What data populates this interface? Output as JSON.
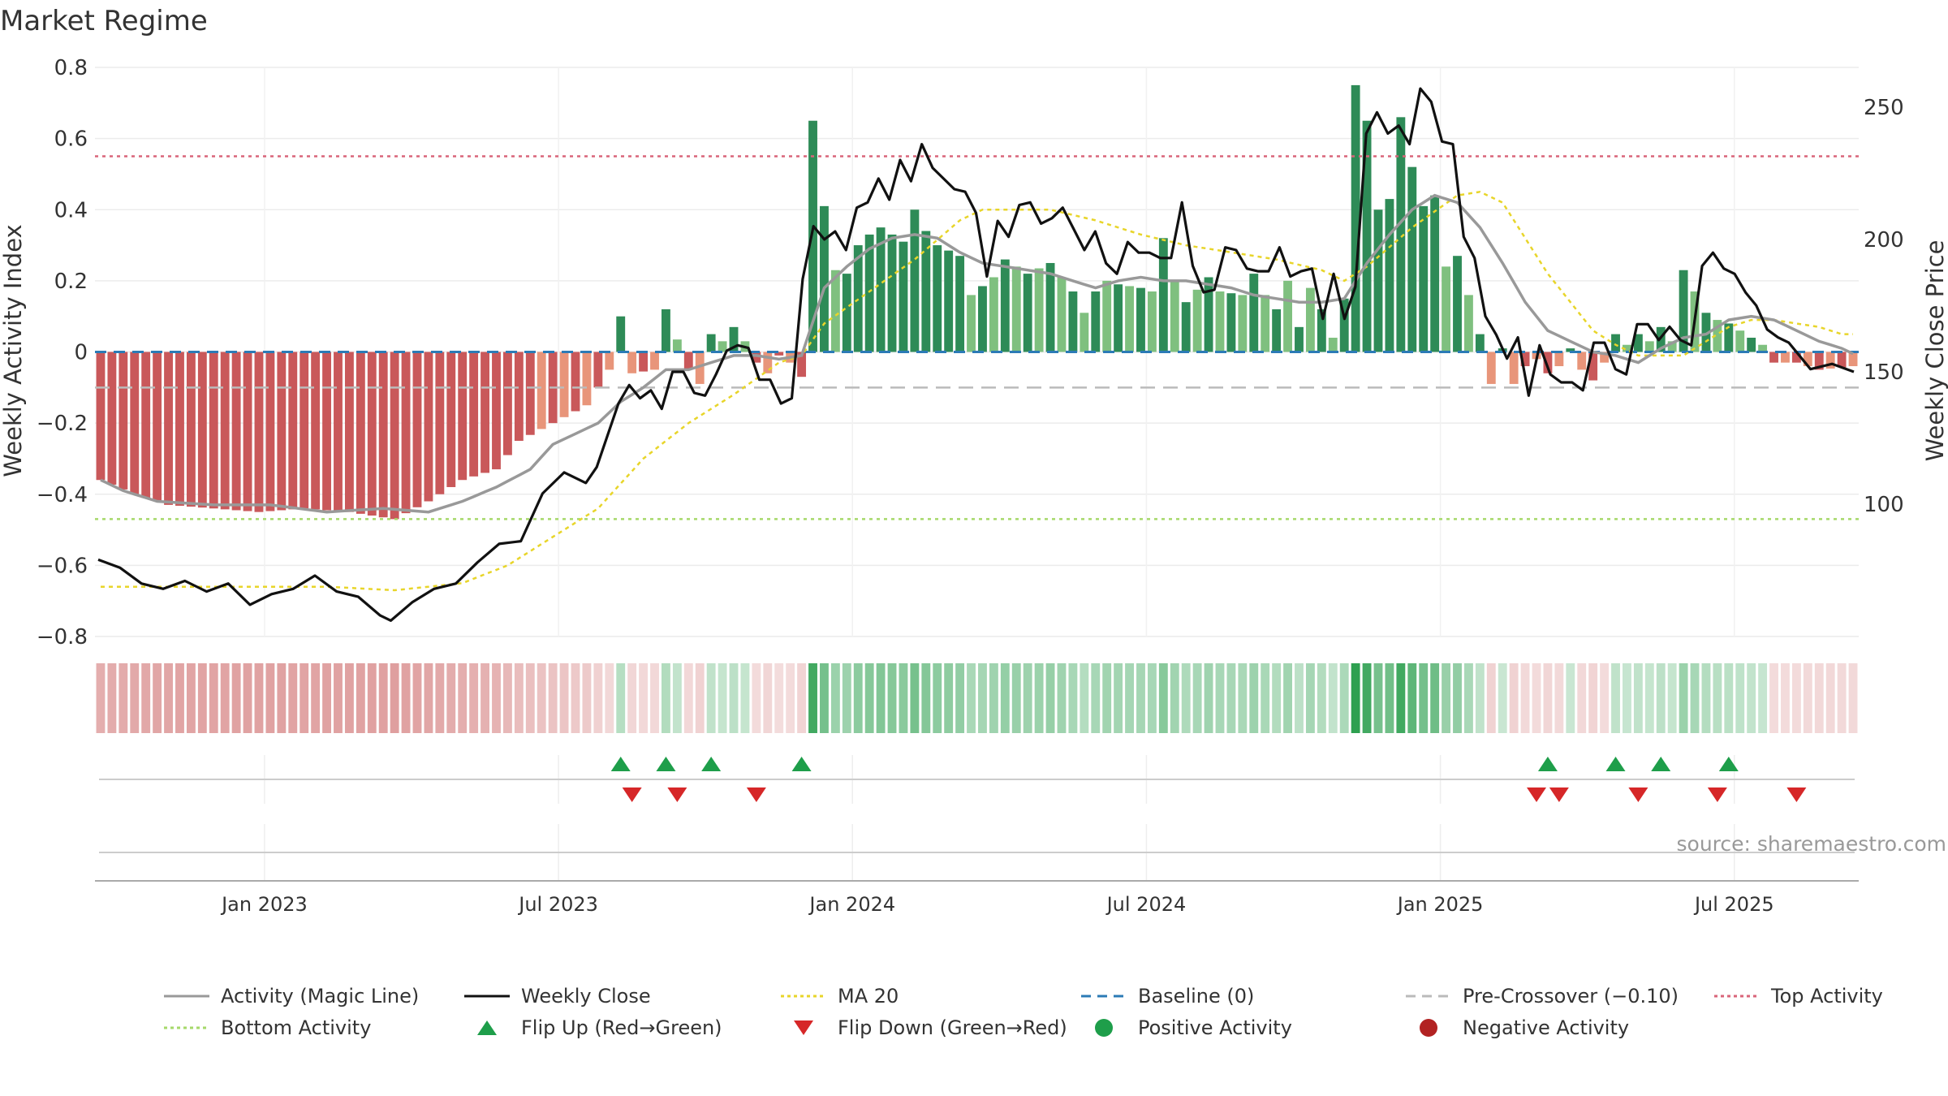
{
  "title": "Market Regime",
  "source_label": "source: sharemaestro.com",
  "colors": {
    "bar_neg_strong": "#c9585a",
    "bar_neg_weak": "#e8957a",
    "bar_pos_strong": "#2e8b57",
    "bar_pos_weak": "#7fc07f",
    "magic_line": "#999999",
    "close": "#111111",
    "ma20": "#e8d52a",
    "baseline": "#2c7bb6",
    "pre_crossover": "#bbbbbb",
    "top_activity": "#d9657a",
    "bottom_activity": "#a6d96a",
    "flip_up": "#1e9e4a",
    "flip_down": "#d62728"
  },
  "legend": [
    {
      "label": "Activity (Magic Line)",
      "kind": "line",
      "color": "#999999",
      "dash": ""
    },
    {
      "label": "Weekly Close",
      "kind": "line",
      "color": "#111111",
      "dash": ""
    },
    {
      "label": "MA 20",
      "kind": "line",
      "color": "#e8d52a",
      "dash": "4,4"
    },
    {
      "label": "Baseline (0)",
      "kind": "line",
      "color": "#2c7bb6",
      "dash": "12,8"
    },
    {
      "label": "Pre-Crossover (−0.10)",
      "kind": "line",
      "color": "#bbbbbb",
      "dash": "12,8"
    },
    {
      "label": "Top Activity",
      "kind": "line",
      "color": "#d9657a",
      "dash": "4,4"
    },
    {
      "label": "Bottom Activity",
      "kind": "line",
      "color": "#a6d96a",
      "dash": "4,4"
    },
    {
      "label": "Flip Up (Red→Green)",
      "kind": "tri-up",
      "color": "#1e9e4a",
      "dash": ""
    },
    {
      "label": "Flip Down (Green→Red)",
      "kind": "tri-down",
      "color": "#d62728",
      "dash": ""
    },
    {
      "label": "Positive Activity",
      "kind": "dot",
      "color": "#1e9e4a",
      "dash": ""
    },
    {
      "label": "Negative Activity",
      "kind": "dot",
      "color": "#b22222",
      "dash": ""
    }
  ],
  "chart_data": {
    "type": "bar",
    "ylabel_left": "Weekly Activity Index",
    "ylabel_right": "Weekly Close Price",
    "ylim_left": [
      -0.8,
      0.8
    ],
    "ylim_right": [
      50,
      265
    ],
    "yticks_left": [
      {
        "value": 0.8,
        "label": "0.8"
      },
      {
        "value": 0.6,
        "label": "0.6"
      },
      {
        "value": 0.4,
        "label": "0.4"
      },
      {
        "value": 0.2,
        "label": "0.2"
      },
      {
        "value": 0,
        "label": "0"
      },
      {
        "value": -0.2,
        "label": "−0.2"
      },
      {
        "value": -0.4,
        "label": "−0.4"
      },
      {
        "value": -0.6,
        "label": "−0.6"
      },
      {
        "value": -0.8,
        "label": "−0.8"
      }
    ],
    "yticks_right": [
      {
        "value": 250,
        "label": "250"
      },
      {
        "value": 200,
        "label": "200"
      },
      {
        "value": 150,
        "label": "150"
      },
      {
        "value": 100,
        "label": "100"
      }
    ],
    "x_start_week_label_index": 0,
    "xticks": [
      {
        "week": 15,
        "label": "Jan 2023"
      },
      {
        "week": 41,
        "label": "Jul 2023"
      },
      {
        "week": 67,
        "label": "Jan 2024"
      },
      {
        "week": 93,
        "label": "Jul 2024"
      },
      {
        "week": 119,
        "label": "Jan 2025"
      },
      {
        "week": 145,
        "label": "Jul 2025"
      }
    ],
    "weeks": 156,
    "reference_lines": {
      "baseline": 0,
      "pre_crossover": -0.1,
      "top_activity": 0.55,
      "bottom_activity": -0.47
    },
    "activity_anchors": [
      [
        0,
        -0.36
      ],
      [
        3,
        -0.4
      ],
      [
        6,
        -0.43
      ],
      [
        10,
        -0.44
      ],
      [
        14,
        -0.45
      ],
      [
        18,
        -0.44
      ],
      [
        22,
        -0.45
      ],
      [
        26,
        -0.47
      ],
      [
        29,
        -0.42
      ],
      [
        32,
        -0.36
      ],
      [
        35,
        -0.33
      ],
      [
        37,
        -0.25
      ],
      [
        40,
        -0.2
      ],
      [
        43,
        -0.15
      ],
      [
        45,
        -0.05
      ],
      [
        46,
        0.1
      ],
      [
        47,
        -0.06
      ],
      [
        49,
        -0.05
      ],
      [
        50,
        0.12
      ],
      [
        52,
        -0.05
      ],
      [
        53,
        -0.09
      ],
      [
        54,
        0.05
      ],
      [
        55,
        0.03
      ],
      [
        56,
        0.07
      ],
      [
        57,
        0.03
      ],
      [
        58,
        -0.03
      ],
      [
        59,
        -0.06
      ],
      [
        60,
        -0.01
      ],
      [
        61,
        -0.03
      ],
      [
        62,
        -0.07
      ],
      [
        63,
        0.65
      ],
      [
        64,
        0.41
      ],
      [
        65,
        0.23
      ],
      [
        66,
        0.22
      ],
      [
        67,
        0.3
      ],
      [
        68,
        0.33
      ],
      [
        69,
        0.35
      ],
      [
        71,
        0.31
      ],
      [
        72,
        0.4
      ],
      [
        73,
        0.34
      ],
      [
        74,
        0.3
      ],
      [
        76,
        0.27
      ],
      [
        77,
        0.16
      ],
      [
        79,
        0.21
      ],
      [
        80,
        0.26
      ],
      [
        82,
        0.22
      ],
      [
        84,
        0.25
      ],
      [
        86,
        0.17
      ],
      [
        87,
        0.11
      ],
      [
        88,
        0.17
      ],
      [
        89,
        0.2
      ],
      [
        90,
        0.19
      ],
      [
        92,
        0.18
      ],
      [
        93,
        0.17
      ],
      [
        94,
        0.32
      ],
      [
        95,
        0.2
      ],
      [
        96,
        0.14
      ],
      [
        98,
        0.21
      ],
      [
        99,
        0.17
      ],
      [
        101,
        0.16
      ],
      [
        102,
        0.22
      ],
      [
        103,
        0.16
      ],
      [
        104,
        0.12
      ],
      [
        105,
        0.2
      ],
      [
        106,
        0.07
      ],
      [
        107,
        0.18
      ],
      [
        108,
        0.12
      ],
      [
        109,
        0.04
      ],
      [
        110,
        0.15
      ],
      [
        111,
        0.75
      ],
      [
        112,
        0.65
      ],
      [
        113,
        0.4
      ],
      [
        114,
        0.43
      ],
      [
        115,
        0.66
      ],
      [
        116,
        0.52
      ],
      [
        117,
        0.41
      ],
      [
        118,
        0.44
      ],
      [
        119,
        0.24
      ],
      [
        120,
        0.27
      ],
      [
        121,
        0.16
      ],
      [
        122,
        0.05
      ],
      [
        123,
        -0.09
      ],
      [
        124,
        0.01
      ],
      [
        125,
        -0.09
      ],
      [
        126,
        -0.04
      ],
      [
        127,
        -0.02
      ],
      [
        128,
        -0.06
      ],
      [
        129,
        -0.04
      ],
      [
        130,
        0.01
      ],
      [
        131,
        -0.05
      ],
      [
        132,
        -0.08
      ],
      [
        133,
        -0.03
      ],
      [
        134,
        0.05
      ],
      [
        135,
        0.02
      ],
      [
        136,
        0.05
      ],
      [
        137,
        0.03
      ],
      [
        138,
        0.07
      ],
      [
        139,
        0.03
      ],
      [
        140,
        0.23
      ],
      [
        141,
        0.17
      ],
      [
        142,
        0.11
      ],
      [
        143,
        0.09
      ],
      [
        144,
        0.08
      ],
      [
        145,
        0.06
      ],
      [
        146,
        0.04
      ],
      [
        147,
        0.02
      ],
      [
        148,
        -0.03
      ],
      [
        150,
        -0.03
      ],
      [
        152,
        -0.05
      ],
      [
        155,
        -0.04
      ]
    ],
    "close_anchors": [
      [
        0,
        79
      ],
      [
        2,
        76
      ],
      [
        4,
        70
      ],
      [
        6,
        68
      ],
      [
        8,
        71
      ],
      [
        10,
        67
      ],
      [
        12,
        70
      ],
      [
        14,
        62
      ],
      [
        16,
        66
      ],
      [
        18,
        68
      ],
      [
        20,
        73
      ],
      [
        22,
        67
      ],
      [
        24,
        65
      ],
      [
        26,
        58
      ],
      [
        27,
        56
      ],
      [
        29,
        63
      ],
      [
        31,
        68
      ],
      [
        33,
        70
      ],
      [
        35,
        78
      ],
      [
        37,
        85
      ],
      [
        39,
        86
      ],
      [
        41,
        104
      ],
      [
        43,
        112
      ],
      [
        45,
        108
      ],
      [
        46,
        114
      ],
      [
        48,
        138
      ],
      [
        49,
        145
      ],
      [
        50,
        140
      ],
      [
        51,
        143
      ],
      [
        52,
        136
      ],
      [
        53,
        150
      ],
      [
        54,
        150
      ],
      [
        55,
        142
      ],
      [
        56,
        141
      ],
      [
        57,
        149
      ],
      [
        58,
        158
      ],
      [
        59,
        160
      ],
      [
        60,
        159
      ],
      [
        61,
        147
      ],
      [
        62,
        147
      ],
      [
        63,
        138
      ],
      [
        64,
        140
      ],
      [
        65,
        185
      ],
      [
        66,
        205
      ],
      [
        67,
        200
      ],
      [
        68,
        203
      ],
      [
        69,
        196
      ],
      [
        70,
        212
      ],
      [
        71,
        214
      ],
      [
        72,
        223
      ],
      [
        73,
        215
      ],
      [
        74,
        230
      ],
      [
        75,
        222
      ],
      [
        76,
        236
      ],
      [
        77,
        227
      ],
      [
        78,
        223
      ],
      [
        79,
        219
      ],
      [
        80,
        218
      ],
      [
        81,
        210
      ],
      [
        82,
        186
      ],
      [
        83,
        207
      ],
      [
        84,
        201
      ],
      [
        85,
        213
      ],
      [
        86,
        214
      ],
      [
        87,
        206
      ],
      [
        88,
        208
      ],
      [
        89,
        212
      ],
      [
        90,
        204
      ],
      [
        91,
        196
      ],
      [
        92,
        203
      ],
      [
        93,
        191
      ],
      [
        94,
        187
      ],
      [
        95,
        199
      ],
      [
        96,
        195
      ],
      [
        97,
        195
      ],
      [
        98,
        193
      ],
      [
        99,
        193
      ],
      [
        100,
        214
      ],
      [
        101,
        190
      ],
      [
        102,
        180
      ],
      [
        103,
        181
      ],
      [
        104,
        197
      ],
      [
        105,
        196
      ],
      [
        106,
        189
      ],
      [
        107,
        188
      ],
      [
        108,
        188
      ],
      [
        109,
        197
      ],
      [
        110,
        186
      ],
      [
        111,
        188
      ],
      [
        112,
        189
      ],
      [
        113,
        170
      ],
      [
        114,
        187
      ],
      [
        115,
        170
      ],
      [
        116,
        182
      ],
      [
        117,
        240
      ],
      [
        118,
        248
      ],
      [
        119,
        240
      ],
      [
        120,
        243
      ],
      [
        121,
        236
      ],
      [
        122,
        257
      ],
      [
        123,
        252
      ],
      [
        124,
        237
      ],
      [
        125,
        236
      ],
      [
        126,
        201
      ],
      [
        127,
        193
      ],
      [
        128,
        171
      ],
      [
        129,
        164
      ],
      [
        130,
        155
      ],
      [
        131,
        163
      ],
      [
        132,
        141
      ],
      [
        133,
        160
      ],
      [
        134,
        149
      ],
      [
        135,
        146
      ],
      [
        136,
        146
      ],
      [
        137,
        143
      ],
      [
        138,
        161
      ],
      [
        139,
        161
      ],
      [
        140,
        151
      ],
      [
        141,
        149
      ],
      [
        142,
        168
      ],
      [
        143,
        168
      ],
      [
        144,
        162
      ],
      [
        145,
        167
      ],
      [
        146,
        162
      ],
      [
        147,
        160
      ],
      [
        148,
        190
      ],
      [
        149,
        195
      ],
      [
        150,
        189
      ],
      [
        151,
        187
      ],
      [
        152,
        180
      ],
      [
        153,
        175
      ],
      [
        154,
        166
      ],
      [
        155,
        163
      ],
      [
        156,
        161
      ],
      [
        158,
        151
      ],
      [
        160,
        153
      ],
      [
        162,
        150
      ]
    ],
    "magic_line_anchors": [
      [
        0,
        -0.36
      ],
      [
        2,
        -0.39
      ],
      [
        5,
        -0.42
      ],
      [
        10,
        -0.43
      ],
      [
        15,
        -0.43
      ],
      [
        20,
        -0.45
      ],
      [
        25,
        -0.44
      ],
      [
        29,
        -0.45
      ],
      [
        32,
        -0.42
      ],
      [
        35,
        -0.38
      ],
      [
        38,
        -0.33
      ],
      [
        40,
        -0.26
      ],
      [
        42,
        -0.23
      ],
      [
        44,
        -0.2
      ],
      [
        46,
        -0.14
      ],
      [
        48,
        -0.1
      ],
      [
        50,
        -0.05
      ],
      [
        52,
        -0.05
      ],
      [
        54,
        -0.03
      ],
      [
        56,
        -0.01
      ],
      [
        58,
        -0.01
      ],
      [
        60,
        -0.02
      ],
      [
        62,
        -0.01
      ],
      [
        64,
        0.18
      ],
      [
        66,
        0.24
      ],
      [
        68,
        0.29
      ],
      [
        70,
        0.32
      ],
      [
        72,
        0.33
      ],
      [
        74,
        0.32
      ],
      [
        76,
        0.28
      ],
      [
        78,
        0.25
      ],
      [
        80,
        0.24
      ],
      [
        82,
        0.23
      ],
      [
        84,
        0.22
      ],
      [
        86,
        0.2
      ],
      [
        88,
        0.18
      ],
      [
        90,
        0.2
      ],
      [
        92,
        0.21
      ],
      [
        94,
        0.2
      ],
      [
        96,
        0.2
      ],
      [
        98,
        0.19
      ],
      [
        100,
        0.18
      ],
      [
        102,
        0.16
      ],
      [
        104,
        0.15
      ],
      [
        106,
        0.14
      ],
      [
        108,
        0.14
      ],
      [
        110,
        0.15
      ],
      [
        112,
        0.25
      ],
      [
        114,
        0.33
      ],
      [
        116,
        0.4
      ],
      [
        118,
        0.44
      ],
      [
        120,
        0.42
      ],
      [
        122,
        0.35
      ],
      [
        124,
        0.25
      ],
      [
        126,
        0.14
      ],
      [
        128,
        0.06
      ],
      [
        130,
        0.03
      ],
      [
        132,
        0.0
      ],
      [
        134,
        -0.01
      ],
      [
        136,
        -0.03
      ],
      [
        138,
        0.01
      ],
      [
        140,
        0.04
      ],
      [
        142,
        0.05
      ],
      [
        144,
        0.09
      ],
      [
        146,
        0.1
      ],
      [
        148,
        0.09
      ],
      [
        150,
        0.06
      ],
      [
        152,
        0.03
      ],
      [
        154,
        0.01
      ],
      [
        156,
        -0.02
      ]
    ],
    "ma20_anchors": [
      [
        0,
        -0.66
      ],
      [
        10,
        -0.66
      ],
      [
        20,
        -0.66
      ],
      [
        26,
        -0.67
      ],
      [
        32,
        -0.65
      ],
      [
        36,
        -0.6
      ],
      [
        40,
        -0.52
      ],
      [
        44,
        -0.44
      ],
      [
        48,
        -0.3
      ],
      [
        52,
        -0.2
      ],
      [
        56,
        -0.12
      ],
      [
        60,
        -0.03
      ],
      [
        62,
        -0.01
      ],
      [
        64,
        0.08
      ],
      [
        68,
        0.17
      ],
      [
        72,
        0.26
      ],
      [
        76,
        0.37
      ],
      [
        78,
        0.4
      ],
      [
        80,
        0.4
      ],
      [
        84,
        0.4
      ],
      [
        88,
        0.37
      ],
      [
        92,
        0.33
      ],
      [
        96,
        0.3
      ],
      [
        100,
        0.28
      ],
      [
        104,
        0.26
      ],
      [
        108,
        0.23
      ],
      [
        110,
        0.2
      ],
      [
        112,
        0.24
      ],
      [
        116,
        0.35
      ],
      [
        120,
        0.44
      ],
      [
        122,
        0.45
      ],
      [
        124,
        0.42
      ],
      [
        126,
        0.32
      ],
      [
        128,
        0.22
      ],
      [
        130,
        0.14
      ],
      [
        132,
        0.06
      ],
      [
        134,
        0.02
      ],
      [
        136,
        -0.01
      ],
      [
        138,
        -0.01
      ],
      [
        140,
        -0.01
      ],
      [
        142,
        0.03
      ],
      [
        144,
        0.07
      ],
      [
        146,
        0.09
      ],
      [
        148,
        0.09
      ],
      [
        150,
        0.08
      ],
      [
        152,
        0.07
      ],
      [
        154,
        0.05
      ]
    ],
    "flip_up_weeks": [
      46,
      50,
      54,
      62,
      128,
      134,
      138,
      144
    ],
    "flip_down_weeks": [
      47,
      51,
      58,
      127,
      129,
      136,
      143,
      150
    ]
  }
}
